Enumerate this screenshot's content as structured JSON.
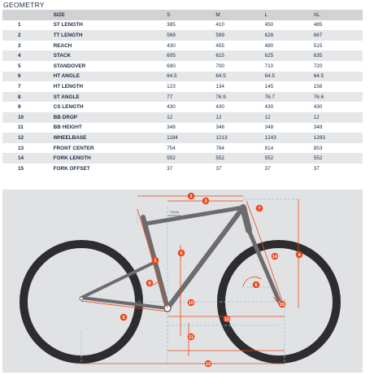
{
  "page": {
    "title": "GEOMETRY"
  },
  "table": {
    "header": [
      "",
      "SIZE",
      "S",
      "M",
      "L",
      "XL"
    ],
    "rows": [
      {
        "n": "1",
        "label": "ST LENGTH",
        "s": "385",
        "m": "410",
        "l": "450",
        "xl": "485"
      },
      {
        "n": "2",
        "label": "TT LENGTH",
        "s": "569",
        "m": "599",
        "l": "628",
        "xl": "667"
      },
      {
        "n": "3",
        "label": "REACH",
        "s": "430",
        "m": "455",
        "l": "480",
        "xl": "515"
      },
      {
        "n": "4",
        "label": "STACK",
        "s": "605",
        "m": "615",
        "l": "625",
        "xl": "635"
      },
      {
        "n": "5",
        "label": "STANDOVER",
        "s": "690",
        "m": "700",
        "l": "710",
        "xl": "720"
      },
      {
        "n": "6",
        "label": "HT ANGLE",
        "s": "64.5",
        "m": "64.5",
        "l": "64.5",
        "xl": "64.5"
      },
      {
        "n": "7",
        "label": "HT LENGTH",
        "s": "123",
        "m": "134",
        "l": "145",
        "xl": "156"
      },
      {
        "n": "8",
        "label": "ST ANGLE",
        "s": "77",
        "m": "76.9",
        "l": "76.7",
        "xl": "76.6"
      },
      {
        "n": "9",
        "label": "CS LENGTH",
        "s": "430",
        "m": "430",
        "l": "430",
        "xl": "430"
      },
      {
        "n": "10",
        "label": "BB DROP",
        "s": "12",
        "m": "12",
        "l": "12",
        "xl": "12"
      },
      {
        "n": "11",
        "label": "BB HEIGHT",
        "s": "348",
        "m": "348",
        "l": "348",
        "xl": "348"
      },
      {
        "n": "12",
        "label": "WHEELBASE",
        "s": "1184",
        "m": "1213",
        "l": "1243",
        "xl": "1283"
      },
      {
        "n": "13",
        "label": "FRONT CENTER",
        "s": "754",
        "m": "784",
        "l": "814",
        "xl": "853"
      },
      {
        "n": "14",
        "label": "FORK LENGTH",
        "s": "552",
        "m": "552",
        "l": "552",
        "xl": "552"
      },
      {
        "n": "15",
        "label": "FORK OFFSET",
        "s": "37",
        "m": "37",
        "l": "37",
        "xl": "37"
      }
    ]
  },
  "diagram": {
    "dimension_label": "70mm",
    "markers": [
      "1",
      "2",
      "3",
      "4",
      "5",
      "6",
      "7",
      "8",
      "9",
      "10",
      "11",
      "12",
      "13",
      "14",
      "15"
    ],
    "colors": {
      "tire": "#2d2d2f",
      "frame": "#6c6c6e",
      "dimension": "#e8491d",
      "guide": "#8fc3df",
      "background": "#e1e2e4"
    }
  }
}
